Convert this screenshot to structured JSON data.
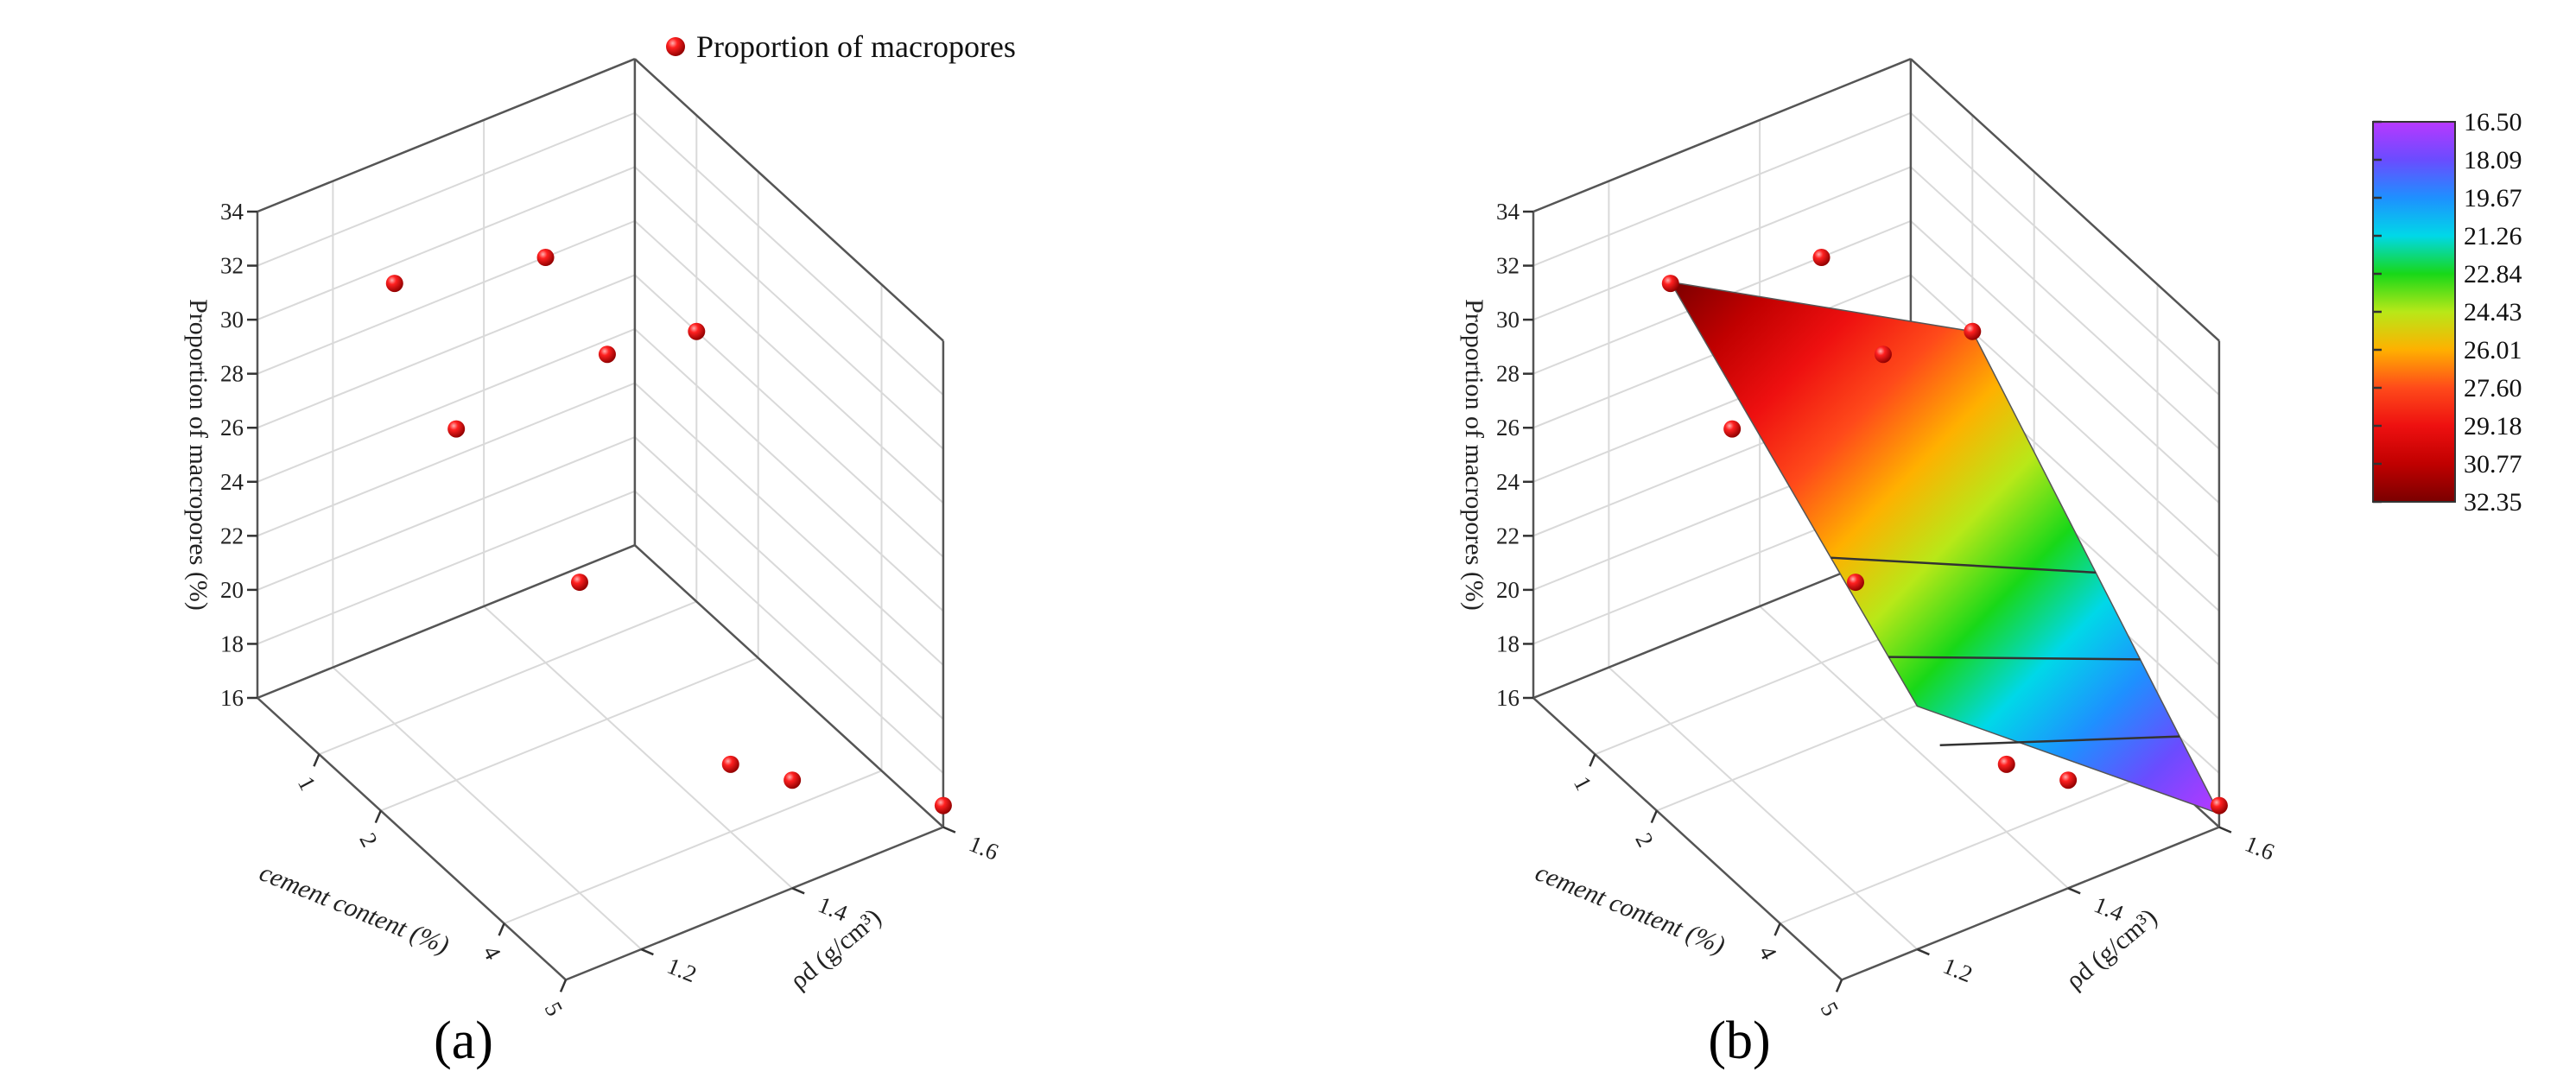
{
  "chart_data": [
    {
      "type": "scatter",
      "panel": "(a)",
      "legend": "Proportion of macropores",
      "legend_position": "top",
      "xlabel": "cement content (%)",
      "ylabel": "ρd (g/cm³)",
      "zlabel": "Proportion of macropores (%)",
      "xlim": [
        0,
        5
      ],
      "ylim": [
        1.1,
        1.6
      ],
      "zlim": [
        16,
        34
      ],
      "x_ticks": [
        "1",
        "2",
        "4",
        "5"
      ],
      "y_ticks": [
        "1.2",
        "1.4",
        "1.6"
      ],
      "z_ticks": [
        "16",
        "18",
        "20",
        "22",
        "24",
        "26",
        "28",
        "30",
        "32",
        "34"
      ],
      "grid": true,
      "point_color": "#e01010",
      "points": [
        {
          "x": 1,
          "y": 1.2,
          "z": 32.3
        },
        {
          "x": 2,
          "y": 1.2,
          "z": 29.0
        },
        {
          "x": 1,
          "y": 1.4,
          "z": 31.0
        },
        {
          "x": 4,
          "y": 1.2,
          "z": 27.5
        },
        {
          "x": 2,
          "y": 1.4,
          "z": 29.5
        },
        {
          "x": 1,
          "y": 1.6,
          "z": 26.0
        },
        {
          "x": 5,
          "y": 1.4,
          "z": 20.0
        },
        {
          "x": 4,
          "y": 1.4,
          "z": 18.5
        },
        {
          "x": 5,
          "y": 1.6,
          "z": 16.8
        }
      ]
    },
    {
      "type": "surface",
      "panel": "(b)",
      "xlabel": "cement content (%)",
      "ylabel": "ρd (g/cm³)",
      "zlabel": "Proportion of macropores (%)",
      "xlim": [
        0,
        5
      ],
      "ylim": [
        1.1,
        1.6
      ],
      "zlim": [
        16,
        34
      ],
      "x_ticks": [
        "1",
        "2",
        "4",
        "5"
      ],
      "y_ticks": [
        "1.2",
        "1.4",
        "1.6"
      ],
      "z_ticks": [
        "16",
        "18",
        "20",
        "22",
        "24",
        "26",
        "28",
        "30",
        "32",
        "34"
      ],
      "grid": true,
      "colorbar_labels": [
        "16.50",
        "18.09",
        "19.67",
        "21.26",
        "22.84",
        "24.43",
        "26.01",
        "27.60",
        "29.18",
        "30.77",
        "32.35"
      ],
      "colorbar_colors": [
        "#b838ff",
        "#6a4cff",
        "#1e90ff",
        "#00d8e8",
        "#18d818",
        "#b8e818",
        "#ffb000",
        "#ff4a1a",
        "#ee1010",
        "#c00000",
        "#7a0000"
      ],
      "surface_corners": [
        {
          "x": 1,
          "y": 1.2,
          "z": 32.35
        },
        {
          "x": 5,
          "y": 1.2,
          "z": 25.0
        },
        {
          "x": 5,
          "y": 1.6,
          "z": 16.5
        },
        {
          "x": 1,
          "y": 1.6,
          "z": 26.0
        }
      ],
      "points": [
        {
          "x": 1,
          "y": 1.2,
          "z": 32.3
        },
        {
          "x": 2,
          "y": 1.2,
          "z": 29.0
        },
        {
          "x": 1,
          "y": 1.4,
          "z": 31.0
        },
        {
          "x": 4,
          "y": 1.2,
          "z": 27.5
        },
        {
          "x": 2,
          "y": 1.4,
          "z": 29.5
        },
        {
          "x": 1,
          "y": 1.6,
          "z": 26.0
        },
        {
          "x": 5,
          "y": 1.4,
          "z": 20.0
        },
        {
          "x": 4,
          "y": 1.4,
          "z": 18.5
        },
        {
          "x": 5,
          "y": 1.6,
          "z": 16.8
        }
      ]
    }
  ]
}
